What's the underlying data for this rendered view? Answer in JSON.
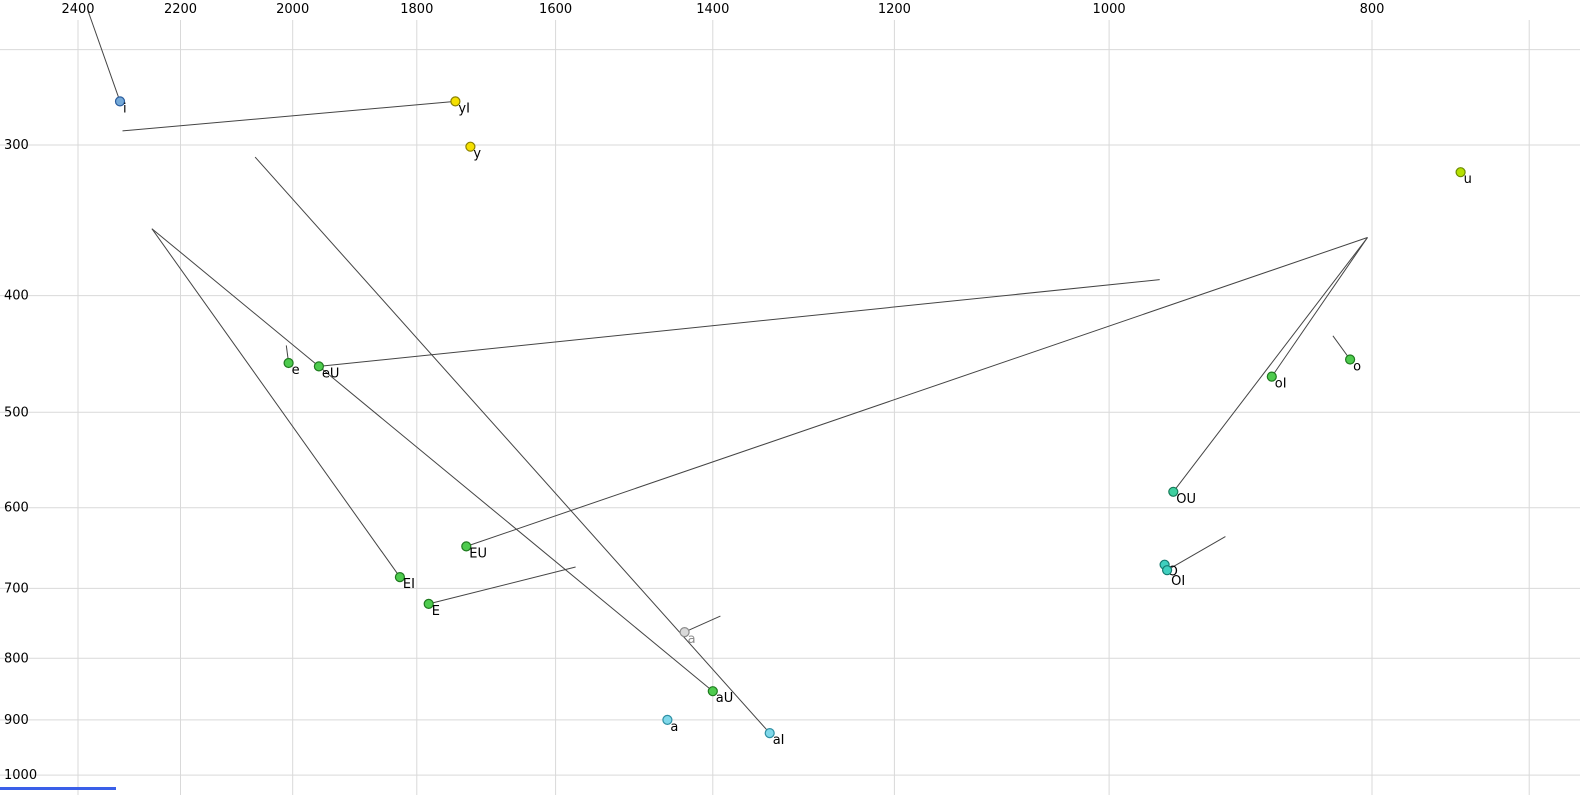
{
  "chart_data": {
    "type": "scatter",
    "description": "Vowel formant plot: F2 (Hz) on reversed log-scaled top axis, F1 (Hz) on log-scaled left axis, with diphthong trajectory lines",
    "x_axis": {
      "position": "top",
      "scale": "log",
      "reversed": true,
      "ticks": [
        2400,
        2200,
        2000,
        1800,
        1600,
        1400,
        1200,
        1000,
        800
      ],
      "extra_gridlines": [
        700
      ],
      "range": [
        2480,
        660
      ]
    },
    "y_axis": {
      "position": "left",
      "scale": "log",
      "ticks": [
        300,
        400,
        500,
        600,
        700,
        800,
        900,
        1000
      ],
      "extra_gridlines": [
        250
      ],
      "range": [
        230,
        1050
      ]
    },
    "style": {
      "grid_color": "#d9d9d9",
      "line_color": "#444444",
      "tick_label_color": "#000000",
      "background": "#ffffff"
    },
    "points": [
      {
        "id": "i",
        "label": "i",
        "f2": 2316,
        "f1": 276,
        "fill": "#74a9d8",
        "stroke": "#2b5d9e",
        "label_color": "#000000"
      },
      {
        "id": "yI",
        "label": "yI",
        "f2": 1742,
        "f1": 276,
        "fill": "#f5e000",
        "stroke": "#8a8000",
        "label_color": "#000000"
      },
      {
        "id": "y",
        "label": "y",
        "f2": 1720,
        "f1": 301,
        "fill": "#f5e000",
        "stroke": "#8a8000",
        "label_color": "#000000"
      },
      {
        "id": "u",
        "label": "u",
        "f2": 742,
        "f1": 316,
        "fill": "#b5e000",
        "stroke": "#6b8a00",
        "label_color": "#000000"
      },
      {
        "id": "e",
        "label": "e",
        "f2": 2007,
        "f1": 455,
        "fill": "#4ecb4e",
        "stroke": "#1f7a1f",
        "label_color": "#000000"
      },
      {
        "id": "eU",
        "label": "eU",
        "f2": 1956,
        "f1": 458,
        "fill": "#4ecb4e",
        "stroke": "#1f7a1f",
        "label_color": "#000000"
      },
      {
        "id": "o",
        "label": "o",
        "f2": 815,
        "f1": 452,
        "fill": "#4ecb4e",
        "stroke": "#1f7a1f",
        "label_color": "#000000"
      },
      {
        "id": "oI",
        "label": "oI",
        "f2": 871,
        "f1": 467,
        "fill": "#4ecb4e",
        "stroke": "#1f7a1f",
        "label_color": "#000000"
      },
      {
        "id": "OU",
        "label": "OU",
        "f2": 947,
        "f1": 582,
        "fill": "#3fcf9f",
        "stroke": "#157a57",
        "label_color": "#000000"
      },
      {
        "id": "EU",
        "label": "EU",
        "f2": 1726,
        "f1": 646,
        "fill": "#4ecb4e",
        "stroke": "#1f7a1f",
        "label_color": "#000000"
      },
      {
        "id": "O",
        "label": "O",
        "f2": 954,
        "f1": 669,
        "fill": "#3fcfbf",
        "stroke": "#157a70",
        "label_color": "#000000"
      },
      {
        "id": "OI",
        "label": "OI",
        "f2": 952,
        "f1": 676,
        "fill": "#3fcfbf",
        "stroke": "#157a70",
        "label_color": "#000000",
        "label_dx": 4,
        "label_dy": 15
      },
      {
        "id": "EI",
        "label": "EI",
        "f2": 1826,
        "f1": 685,
        "fill": "#4ecb4e",
        "stroke": "#1f7a1f",
        "label_color": "#000000"
      },
      {
        "id": "E",
        "label": "E",
        "f2": 1782,
        "f1": 721,
        "fill": "#4ecb4e",
        "stroke": "#1f7a1f",
        "label_color": "#000000"
      },
      {
        "id": "a-gray",
        "label": "a",
        "f2": 1434,
        "f1": 761,
        "fill": "#d9d9d9",
        "stroke": "#8c8c8c",
        "label_color": "#8c8c8c"
      },
      {
        "id": "aU",
        "label": "aU",
        "f2": 1400,
        "f1": 852,
        "fill": "#4ecb4e",
        "stroke": "#1f7a1f",
        "label_color": "#000000"
      },
      {
        "id": "a",
        "label": "a",
        "f2": 1455,
        "f1": 900,
        "fill": "#7fd8ea",
        "stroke": "#2e8fa3",
        "label_color": "#000000"
      },
      {
        "id": "aI",
        "label": "aI",
        "f2": 1334,
        "f1": 923,
        "fill": "#7fd8ea",
        "stroke": "#2e8fa3",
        "label_color": "#000000"
      }
    ],
    "trajectories": [
      {
        "point": "i",
        "from": [
          2380,
          232
        ],
        "to": [
          2316,
          276
        ]
      },
      {
        "point": "yI",
        "from": [
          1742,
          276
        ],
        "to": [
          2311,
          292
        ]
      },
      {
        "point": "e",
        "from": [
          2011,
          440
        ],
        "to": [
          2007,
          455
        ]
      },
      {
        "point": "eU",
        "from": [
          1956,
          458
        ],
        "to": [
          958,
          388
        ]
      },
      {
        "point": "EI",
        "from": [
          1826,
          685
        ],
        "to": [
          2254,
          352
        ]
      },
      {
        "point": "aU",
        "from": [
          1400,
          852
        ],
        "to": [
          2254,
          352
        ]
      },
      {
        "point": "aI",
        "from": [
          1334,
          923
        ],
        "to": [
          2065,
          307
        ]
      },
      {
        "point": "EU",
        "from": [
          1726,
          646
        ],
        "to": [
          803,
          358
        ]
      },
      {
        "point": "OU",
        "from": [
          947,
          582
        ],
        "to": [
          803,
          358
        ]
      },
      {
        "point": "oI",
        "from": [
          871,
          467
        ],
        "to": [
          803,
          358
        ]
      },
      {
        "point": "E",
        "from": [
          1782,
          721
        ],
        "to": [
          1573,
          672
        ]
      },
      {
        "point": "a-gray",
        "from": [
          1434,
          761
        ],
        "to": [
          1391,
          738
        ]
      },
      {
        "point": "o",
        "from": [
          827,
          432
        ],
        "to": [
          815,
          452
        ]
      },
      {
        "point": "OI",
        "from": [
          952,
          676
        ],
        "to": [
          906,
          634
        ]
      }
    ]
  },
  "decor": {
    "bottom_left_bar_color": "#3a5fe8"
  }
}
